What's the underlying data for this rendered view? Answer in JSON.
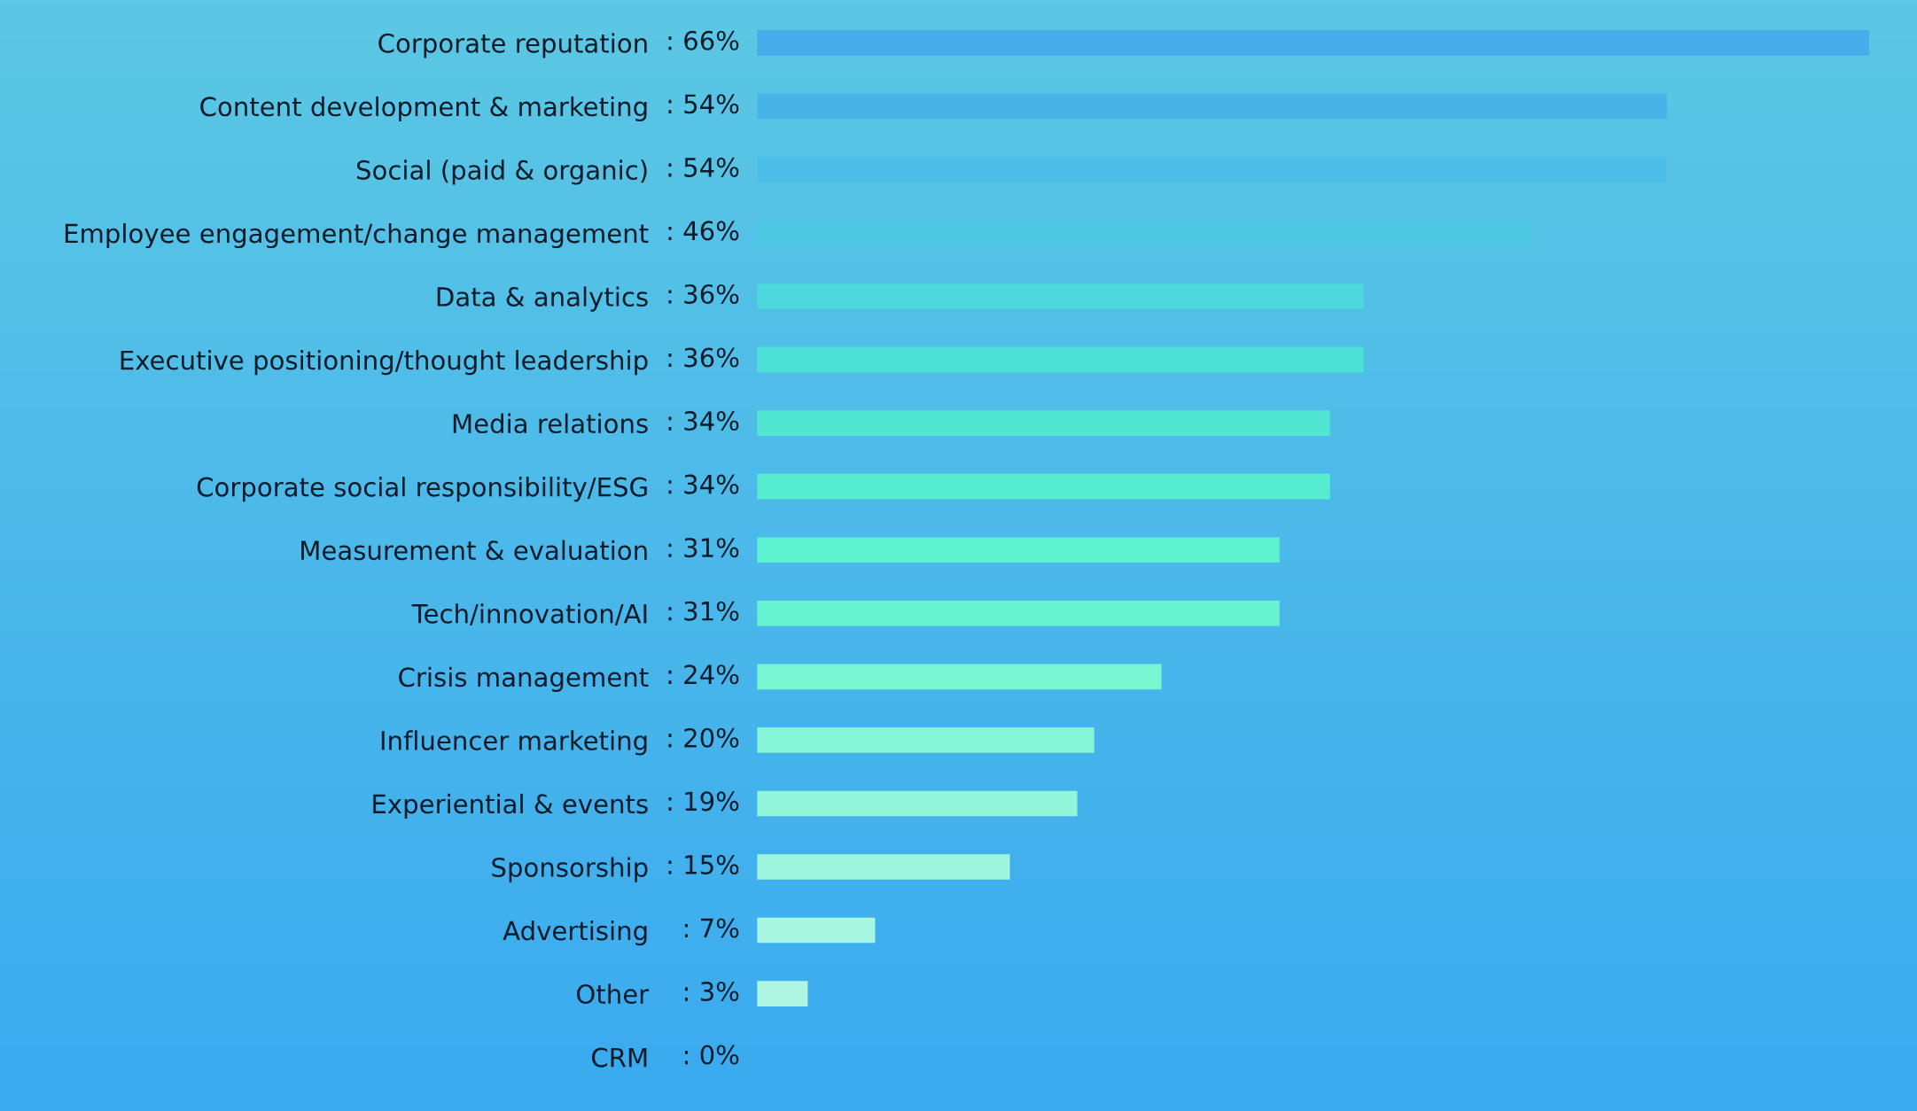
{
  "chart_data": {
    "type": "bar",
    "orientation": "horizontal",
    "categories": [
      "Corporate reputation",
      "Content development & marketing",
      "Social (paid & organic)",
      "Employee engagement/change management",
      "Data & analytics",
      "Executive positioning/thought leadership",
      "Media relations",
      "Corporate social responsibility/ESG",
      "Measurement & evaluation",
      "Tech/innovation/AI",
      "Crisis management",
      "Influencer marketing",
      "Experiential & events",
      "Sponsorship",
      "Advertising",
      "Other",
      "CRM"
    ],
    "values": [
      66,
      54,
      54,
      46,
      36,
      36,
      34,
      34,
      31,
      31,
      24,
      20,
      19,
      15,
      7,
      3,
      0
    ],
    "value_labels": [
      ": 66%",
      ": 54%",
      ": 54%",
      ": 46%",
      ": 36%",
      ": 36%",
      ": 34%",
      ": 34%",
      ": 31%",
      ": 31%",
      ": 24%",
      ": 20%",
      ": 19%",
      ": 15%",
      ": 7%",
      ": 3%",
      ": 0%"
    ],
    "colors": [
      "#46acea",
      "#47b4e8",
      "#4abee6",
      "#4cc8e0",
      "#4cd8dc",
      "#4de0d6",
      "#50e6d2",
      "#55ecd0",
      "#5ef2d0",
      "#68f4d0",
      "#78f6d2",
      "#86f6d6",
      "#92f6da",
      "#9ef6de",
      "#a6f6e0",
      "#aef6e2",
      "#b4f6e4"
    ]
  }
}
